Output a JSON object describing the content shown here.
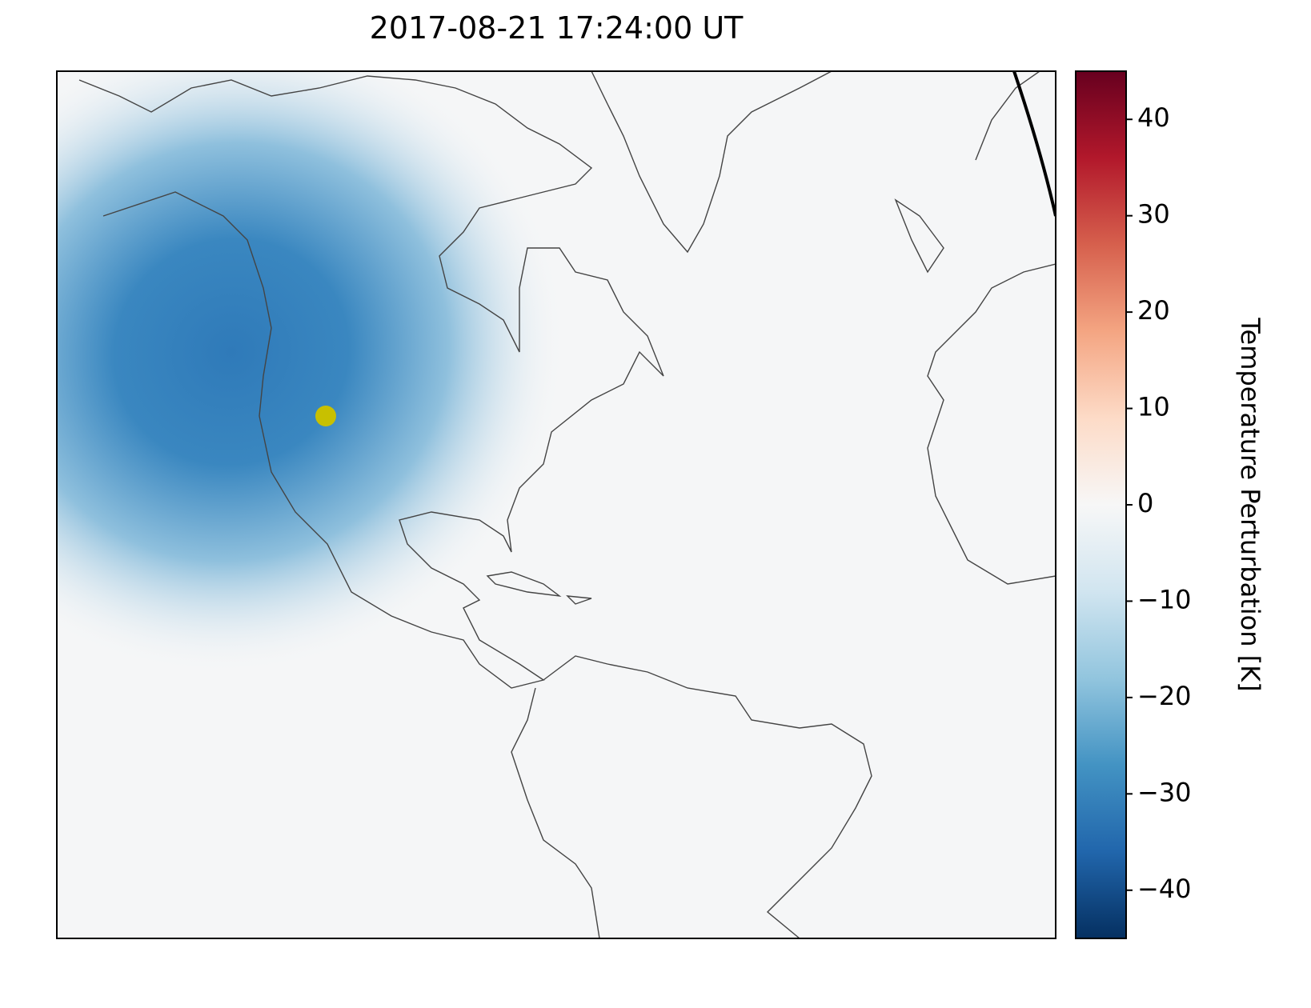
{
  "chart_data": {
    "type": "map",
    "title": "2017-08-21 17:24:00 UT",
    "colorbar": {
      "label": "Temperature Perturbation [K]",
      "lim": [
        -45,
        45
      ],
      "ticks": [
        {
          "value": -40,
          "label": "−40"
        },
        {
          "value": -30,
          "label": "−30"
        },
        {
          "value": -20,
          "label": "−20"
        },
        {
          "value": -10,
          "label": "−10"
        },
        0,
        10,
        20,
        30,
        40
      ],
      "colors": [
        "#053061",
        "#2166ac",
        "#4393c3",
        "#92c5de",
        "#d1e5f0",
        "#f7f7f7",
        "#fddbc7",
        "#f4a582",
        "#d6604d",
        "#b2182b",
        "#67001f"
      ]
    }
  }
}
